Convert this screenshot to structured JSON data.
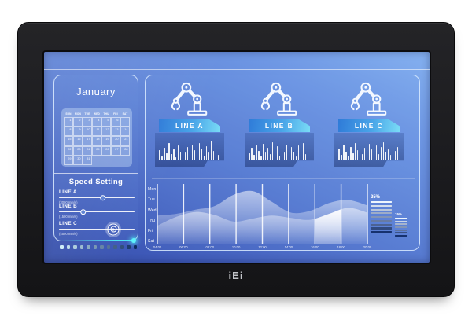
{
  "device": {
    "logo": "iEi"
  },
  "dashboard": {
    "calendar": {
      "title": "January",
      "day_headers": [
        "SUN",
        "MON",
        "TUE",
        "WED",
        "THU",
        "FRI",
        "SAT"
      ],
      "start_weekday": 0,
      "num_days": 31
    },
    "speed_setting": {
      "title": "Speed Setting",
      "sliders": [
        {
          "label": "LINE A",
          "value": "(3000 mm/s)",
          "position_pct": 58,
          "knob": "ring"
        },
        {
          "label": "LINE B",
          "value": "(1500 mm/s)",
          "position_pct": 32,
          "knob": "ring"
        },
        {
          "label": "LINE C",
          "value": "(4500 mm/s)",
          "position_pct": 72,
          "knob": "target"
        }
      ]
    },
    "pager_dots": {
      "count": 12,
      "color_from": "#cdeef8",
      "color_to": "#0d2a5e"
    },
    "production_lines": [
      {
        "label": "LINE A",
        "bars": [
          42,
          18,
          55,
          30,
          72,
          26,
          48,
          15,
          62,
          38,
          80,
          33,
          57,
          22,
          68,
          45,
          28,
          75,
          50,
          20,
          60,
          35,
          82,
          40,
          52,
          24
        ]
      },
      {
        "label": "LINE B",
        "bars": [
          30,
          55,
          22,
          64,
          40,
          18,
          70,
          35,
          52,
          26,
          78,
          44,
          60,
          20,
          50,
          32,
          68,
          25,
          58,
          38,
          16,
          62,
          46,
          72,
          28,
          54
        ]
      },
      {
        "label": "LINE C",
        "bars": [
          50,
          24,
          66,
          38,
          20,
          58,
          30,
          74,
          42,
          60,
          26,
          52,
          18,
          70,
          46,
          34,
          62,
          28,
          56,
          76,
          36,
          48,
          22,
          64,
          40,
          58
        ]
      }
    ],
    "chart_data": {
      "type": "area",
      "y_labels": [
        "Mon",
        "Tue",
        "Wed",
        "Thu",
        "Fri",
        "Sat"
      ],
      "x_labels": [
        "04:00",
        "06:00",
        "08:00",
        "10:00",
        "12:00",
        "14:00",
        "16:00",
        "18:00",
        "20:00"
      ],
      "grid_lines": 9,
      "series": [
        {
          "name": "trend-back",
          "values": [
            0.47,
            0.5,
            0.57,
            0.63,
            0.82,
            0.88,
            0.7,
            0.52,
            0.55,
            0.68,
            0.73,
            0.64
          ]
        },
        {
          "name": "trend-front",
          "values": [
            0.3,
            0.45,
            0.53,
            0.48,
            0.37,
            0.42,
            0.47,
            0.43,
            0.4,
            0.5,
            0.6,
            0.52
          ]
        }
      ],
      "highlight_band": {
        "from_line": 6,
        "to_line": 7
      },
      "gauges": [
        {
          "label": "25%",
          "bar_count": 9
        },
        {
          "label": "15%",
          "bar_count": 7
        }
      ]
    }
  },
  "colors": {
    "accent_cyan": "#4fe4f4",
    "banner_from": "#2f7bd8",
    "banner_to": "#7adcf6",
    "gauge_from": "#eef6fe",
    "gauge_to": "#16316e"
  }
}
